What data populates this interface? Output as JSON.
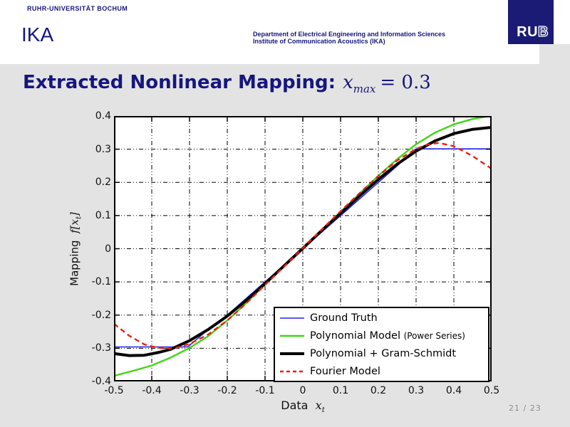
{
  "slide": {
    "university": "RUHR-UNIVERSITÄT BOCHUM",
    "institute_abbrev": "IKA",
    "department_line1": "Department of Electrical Engineering and Information Sciences",
    "department_line2": "Institute of Communication Acoustics (IKA)",
    "logo_solid": "RU",
    "logo_outline": "B",
    "title_text": "Extracted Nonlinear Mapping:",
    "title_math_var": "x",
    "title_math_sub": "max",
    "title_math_rest": "= 0.3",
    "page_indicator": "21 / 23",
    "colors": {
      "header_text": "#16167e",
      "logo_bg": "#1b1b75",
      "slide_bg": "#e3e3e3",
      "page_num": "#8f8f8f"
    }
  },
  "chart_data": {
    "type": "line",
    "title": "",
    "xlabel_text": "Data",
    "xlabel_math": "x",
    "xlabel_sub": "t",
    "ylabel_text": "Mapping",
    "ylabel_math": "f[x",
    "ylabel_sub": "t",
    "ylabel_close": "]",
    "xlim": [
      -0.5,
      0.5
    ],
    "ylim": [
      -0.4,
      0.4
    ],
    "grid": true,
    "grid_style": "dash-dot",
    "legend_position": "south-east",
    "xticks": [
      -0.5,
      -0.4,
      -0.3,
      -0.2,
      -0.1,
      0,
      0.1,
      0.2,
      0.3,
      0.4,
      0.5
    ],
    "yticks": [
      0.4,
      0.3,
      0.2,
      0.1,
      0,
      -0.1,
      -0.2,
      -0.3,
      -0.4
    ],
    "xtick_labels": [
      "-0.5",
      "-0.4",
      "-0.3",
      "-0.2",
      "-0.1",
      "0",
      "0.1",
      "0.2",
      "0.3",
      "0.4",
      "0.5"
    ],
    "ytick_labels": [
      "0.4",
      "0.3",
      "0.2",
      "0.1",
      "0",
      "-0.1",
      "-0.2",
      "-0.3",
      "-0.4"
    ],
    "series": [
      {
        "name": "Ground Truth",
        "label": "Ground Truth",
        "label_small": "",
        "color": "#2323e8",
        "width": 1.6,
        "dash": "",
        "points": [
          [
            -0.5,
            -0.296
          ],
          [
            -0.305,
            -0.296
          ],
          [
            -0.25,
            -0.243
          ],
          [
            -0.2,
            -0.2
          ],
          [
            -0.15,
            -0.15
          ],
          [
            -0.1,
            -0.1
          ],
          [
            -0.05,
            -0.05
          ],
          [
            0,
            0
          ],
          [
            0.05,
            0.05
          ],
          [
            0.1,
            0.1
          ],
          [
            0.15,
            0.15
          ],
          [
            0.2,
            0.2
          ],
          [
            0.25,
            0.25
          ],
          [
            0.285,
            0.287
          ],
          [
            0.3,
            0.301
          ],
          [
            0.5,
            0.301
          ]
        ]
      },
      {
        "name": "Polynomial Model (Power Series)",
        "label": "Polynomial Model",
        "label_small": "(Power Series)",
        "color": "#3fd612",
        "width": 2.4,
        "dash": "",
        "points": [
          [
            -0.5,
            -0.383
          ],
          [
            -0.45,
            -0.368
          ],
          [
            -0.4,
            -0.352
          ],
          [
            -0.35,
            -0.328
          ],
          [
            -0.3,
            -0.299
          ],
          [
            -0.25,
            -0.263
          ],
          [
            -0.2,
            -0.216
          ],
          [
            -0.15,
            -0.164
          ],
          [
            -0.1,
            -0.108
          ],
          [
            -0.05,
            -0.053
          ],
          [
            0,
            0.002
          ],
          [
            0.05,
            0.057
          ],
          [
            0.1,
            0.111
          ],
          [
            0.15,
            0.166
          ],
          [
            0.2,
            0.22
          ],
          [
            0.25,
            0.27
          ],
          [
            0.3,
            0.315
          ],
          [
            0.35,
            0.35
          ],
          [
            0.4,
            0.375
          ],
          [
            0.45,
            0.391
          ],
          [
            0.5,
            0.401
          ]
        ]
      },
      {
        "name": "Polynomial + Gram-Schmidt",
        "label": "Polynomial + Gram-Schmidt",
        "label_small": "",
        "color": "#000000",
        "width": 4,
        "dash": "",
        "points": [
          [
            -0.5,
            -0.316
          ],
          [
            -0.46,
            -0.322
          ],
          [
            -0.42,
            -0.321
          ],
          [
            -0.38,
            -0.312
          ],
          [
            -0.35,
            -0.303
          ],
          [
            -0.3,
            -0.277
          ],
          [
            -0.25,
            -0.243
          ],
          [
            -0.2,
            -0.203
          ],
          [
            -0.15,
            -0.156
          ],
          [
            -0.1,
            -0.105
          ],
          [
            -0.05,
            -0.052
          ],
          [
            0,
            0.001
          ],
          [
            0.05,
            0.055
          ],
          [
            0.1,
            0.107
          ],
          [
            0.15,
            0.159
          ],
          [
            0.2,
            0.209
          ],
          [
            0.25,
            0.255
          ],
          [
            0.3,
            0.294
          ],
          [
            0.35,
            0.325
          ],
          [
            0.4,
            0.347
          ],
          [
            0.45,
            0.36
          ],
          [
            0.5,
            0.366
          ]
        ]
      },
      {
        "name": "Fourier Model",
        "label": "Fourier Model",
        "label_small": "",
        "color": "#ee1c10",
        "width": 2.4,
        "dash": "7 5",
        "points": [
          [
            -0.5,
            -0.226
          ],
          [
            -0.46,
            -0.262
          ],
          [
            -0.42,
            -0.288
          ],
          [
            -0.39,
            -0.297
          ],
          [
            -0.36,
            -0.301
          ],
          [
            -0.33,
            -0.297
          ],
          [
            -0.3,
            -0.287
          ],
          [
            -0.25,
            -0.258
          ],
          [
            -0.2,
            -0.216
          ],
          [
            -0.15,
            -0.165
          ],
          [
            -0.1,
            -0.109
          ],
          [
            -0.05,
            -0.054
          ],
          [
            0,
            0.002
          ],
          [
            0.05,
            0.058
          ],
          [
            0.1,
            0.113
          ],
          [
            0.15,
            0.167
          ],
          [
            0.2,
            0.219
          ],
          [
            0.25,
            0.266
          ],
          [
            0.3,
            0.301
          ],
          [
            0.33,
            0.314
          ],
          [
            0.36,
            0.319
          ],
          [
            0.4,
            0.309
          ],
          [
            0.45,
            0.279
          ],
          [
            0.5,
            0.241
          ]
        ]
      }
    ]
  }
}
